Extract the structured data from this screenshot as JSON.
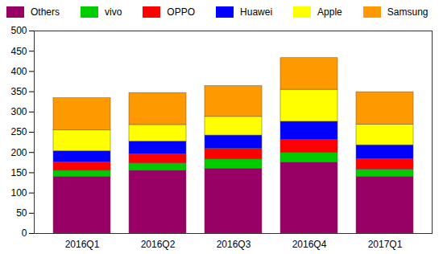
{
  "chart_data": {
    "type": "bar",
    "stacked": true,
    "legend": "top",
    "grid": false,
    "categories": [
      "2016Q1",
      "2016Q2",
      "2016Q3",
      "2016Q4",
      "2017Q1"
    ],
    "series": [
      {
        "name": "Others",
        "color": "#990066",
        "values": [
          140,
          155,
          160,
          175,
          140
        ]
      },
      {
        "name": "vivo",
        "color": "#00cc00",
        "values": [
          15,
          18,
          23,
          24,
          18
        ]
      },
      {
        "name": "OPPO",
        "color": "#ff0000",
        "values": [
          21,
          23,
          26,
          32,
          26
        ]
      },
      {
        "name": "Huawei",
        "color": "#0000ff",
        "values": [
          27,
          31,
          33,
          45,
          34
        ]
      },
      {
        "name": "Apple",
        "color": "#ffff00",
        "values": [
          52,
          41,
          46,
          79,
          51
        ]
      },
      {
        "name": "Samsung",
        "color": "#ff9900",
        "values": [
          79,
          79,
          76,
          78,
          80
        ]
      }
    ],
    "ylim": [
      0,
      500
    ],
    "yticks": [
      0,
      50,
      100,
      150,
      200,
      250,
      300,
      350,
      400,
      450,
      500
    ]
  }
}
